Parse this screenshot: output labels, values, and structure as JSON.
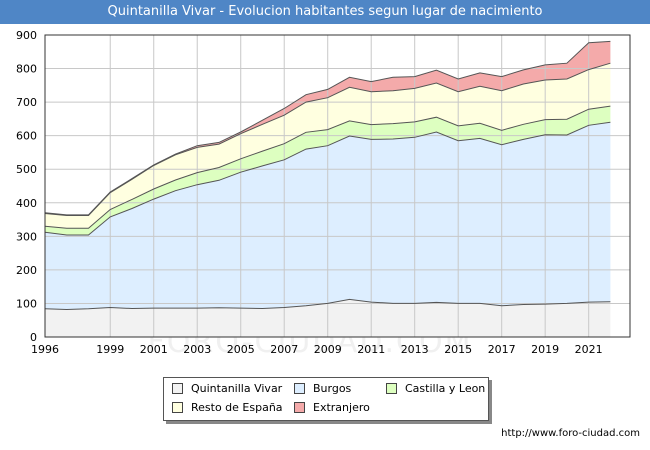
{
  "title": "Quintanilla Vivar - Evolucion habitantes segun lugar de nacimiento",
  "source": "http://www.foro-ciudad.com",
  "watermark": "FORO-CIUDAD.COM",
  "chart_data": {
    "type": "area",
    "stacked": true,
    "x": [
      1996,
      1997,
      1998,
      1999,
      2000,
      2001,
      2002,
      2003,
      2004,
      2005,
      2006,
      2007,
      2008,
      2009,
      2010,
      2011,
      2012,
      2013,
      2014,
      2015,
      2016,
      2017,
      2018,
      2019,
      2020,
      2021,
      2022
    ],
    "x_ticks": [
      1996,
      1999,
      2001,
      2003,
      2005,
      2007,
      2009,
      2011,
      2013,
      2015,
      2017,
      2019,
      2021
    ],
    "y_ticks": [
      0,
      100,
      200,
      300,
      400,
      500,
      600,
      700,
      800,
      900
    ],
    "ylim": [
      0,
      900
    ],
    "xlim": [
      1996,
      2022.9
    ],
    "grid": true,
    "legend_position": "bottom",
    "series": [
      {
        "name": "Quintanilla Vivar",
        "color": "#f2f2f2",
        "values": [
          84,
          82,
          84,
          88,
          85,
          86,
          86,
          86,
          87,
          86,
          85,
          88,
          93,
          100,
          112,
          104,
          100,
          100,
          103,
          100,
          100,
          93,
          97,
          98,
          100,
          104,
          105
        ]
      },
      {
        "name": "Burgos",
        "color": "#ddeeff",
        "values": [
          228,
          222,
          220,
          270,
          298,
          325,
          350,
          368,
          380,
          405,
          425,
          440,
          467,
          470,
          487,
          485,
          490,
          495,
          508,
          485,
          492,
          480,
          492,
          505,
          502,
          527,
          535
        ]
      },
      {
        "name": "Castilla y Leon",
        "color": "#ddffc0",
        "values": [
          18,
          20,
          20,
          22,
          27,
          30,
          32,
          36,
          38,
          40,
          44,
          48,
          50,
          48,
          45,
          44,
          46,
          46,
          44,
          44,
          45,
          43,
          45,
          45,
          47,
          48,
          48
        ]
      },
      {
        "name": "Resto de España",
        "color": "#ffffe0",
        "values": [
          38,
          38,
          38,
          50,
          60,
          70,
          75,
          75,
          70,
          75,
          80,
          85,
          90,
          95,
          100,
          98,
          98,
          100,
          102,
          102,
          110,
          118,
          120,
          118,
          120,
          118,
          128
        ]
      },
      {
        "name": "Extranjero",
        "color": "#f4aaaa",
        "values": [
          2,
          2,
          2,
          2,
          2,
          2,
          2,
          5,
          5,
          5,
          12,
          20,
          22,
          25,
          30,
          30,
          40,
          35,
          38,
          38,
          40,
          42,
          42,
          45,
          47,
          80,
          65
        ]
      }
    ]
  }
}
